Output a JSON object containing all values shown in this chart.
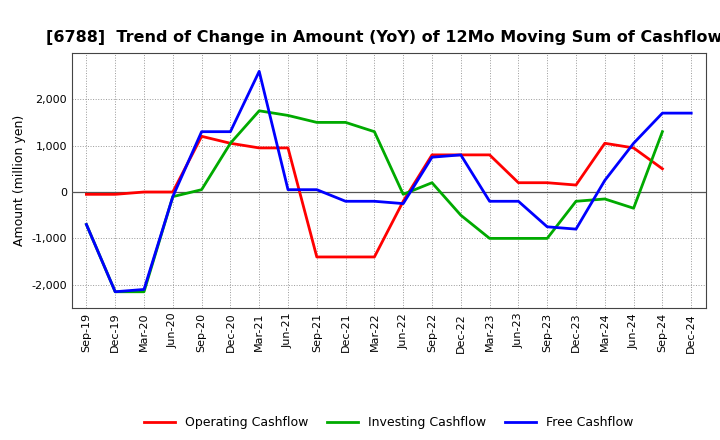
{
  "title": "[6788]  Trend of Change in Amount (YoY) of 12Mo Moving Sum of Cashflows",
  "ylabel": "Amount (million yen)",
  "xlabels": [
    "Sep-19",
    "Dec-19",
    "Mar-20",
    "Jun-20",
    "Sep-20",
    "Dec-20",
    "Mar-21",
    "Jun-21",
    "Sep-21",
    "Dec-21",
    "Mar-22",
    "Jun-22",
    "Sep-22",
    "Dec-22",
    "Mar-23",
    "Jun-23",
    "Sep-23",
    "Dec-23",
    "Mar-24",
    "Jun-24",
    "Sep-24",
    "Dec-24"
  ],
  "operating": [
    -50,
    -50,
    0,
    0,
    1200,
    1050,
    950,
    950,
    -1400,
    -1400,
    -1400,
    -200,
    800,
    800,
    800,
    200,
    200,
    150,
    1050,
    950,
    500,
    null
  ],
  "investing": [
    -700,
    -2150,
    -2150,
    -100,
    50,
    1050,
    1750,
    1650,
    1500,
    1500,
    1300,
    -50,
    200,
    -500,
    -1000,
    -1000,
    -1000,
    -200,
    -150,
    -350,
    1300,
    null
  ],
  "free": [
    -700,
    -2150,
    -2100,
    -100,
    1300,
    1300,
    2600,
    50,
    50,
    -200,
    -200,
    -250,
    750,
    800,
    -200,
    -200,
    -750,
    -800,
    250,
    1050,
    1700,
    1700
  ],
  "ylim": [
    -2500,
    3000
  ],
  "yticks": [
    -2000,
    -1000,
    0,
    1000,
    2000
  ],
  "colors": {
    "operating": "#ff0000",
    "investing": "#00aa00",
    "free": "#0000ff"
  },
  "legend_labels": [
    "Operating Cashflow",
    "Investing Cashflow",
    "Free Cashflow"
  ],
  "background": "#ffffff",
  "grid_color": "#999999",
  "title_fontsize": 11.5,
  "ylabel_fontsize": 9,
  "tick_fontsize": 8
}
